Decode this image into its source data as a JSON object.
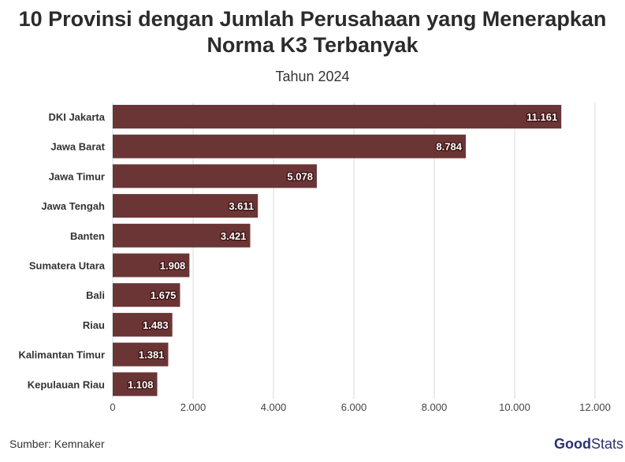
{
  "chart_data": {
    "type": "bar",
    "orientation": "horizontal",
    "title": "10 Provinsi dengan Jumlah Perusahaan yang Menerapkan Norma K3 Terbanyak",
    "subtitle": "Tahun 2024",
    "categories": [
      "DKI Jakarta",
      "Jawa Barat",
      "Jawa Timur",
      "Jawa Tengah",
      "Banten",
      "Sumatera Utara",
      "Bali",
      "Riau",
      "Kalimantan Timur",
      "Kepulauan Riau"
    ],
    "values": [
      11161,
      8784,
      5078,
      3611,
      3421,
      1908,
      1675,
      1483,
      1381,
      1108
    ],
    "data_labels": [
      "11.161",
      "8.784",
      "5.078",
      "3.611",
      "3.421",
      "1.908",
      "1.675",
      "1.483",
      "1.381",
      "1.108"
    ],
    "xlim": [
      0,
      12000
    ],
    "x_ticks": [
      0,
      2000,
      4000,
      6000,
      8000,
      10000,
      12000
    ],
    "x_tick_labels": [
      "0",
      "2.000",
      "4.000",
      "6.000",
      "8.000",
      "10.000",
      "12.000"
    ],
    "grid": true,
    "bar_color": "#6b3535"
  },
  "footer": {
    "source": "Sumber: Kemnaker",
    "logo_bold": "Good",
    "logo_light": "Stats"
  }
}
